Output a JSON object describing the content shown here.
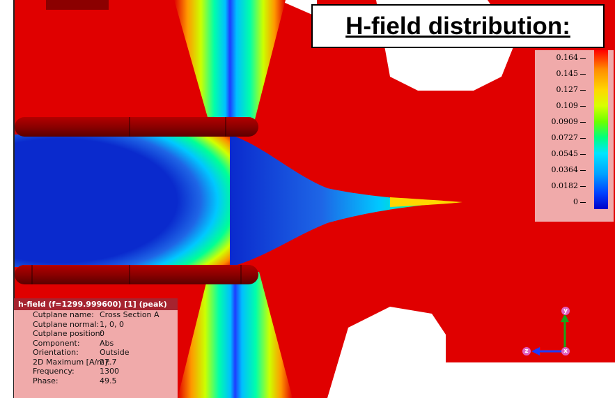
{
  "title": "H-field distribution:",
  "colors": {
    "background_field": "#e00000",
    "low_field": "#0033cc",
    "conductor": "#8b0000",
    "panel_bg": "#f0aaaa",
    "panel_header": "#a6232f"
  },
  "legend": {
    "ticks": [
      "0.164",
      "0.145",
      "0.127",
      "0.109",
      "0.0909",
      "0.0727",
      "0.0545",
      "0.0364",
      "0.0182",
      "0"
    ]
  },
  "info_panel": {
    "header": "h-field (f=1299.999600) [1] (peak)",
    "rows": [
      {
        "key": "Cutplane name:",
        "value": "Cross Section A"
      },
      {
        "key": "Cutplane normal:",
        "value": "1, 0, 0"
      },
      {
        "key": "Cutplane position:",
        "value": "0"
      },
      {
        "key": "Component:",
        "value": "Abs"
      },
      {
        "key": "Orientation:",
        "value": "Outside"
      },
      {
        "key": "2D Maximum [A/m]:",
        "value": "27.7"
      },
      {
        "key": "Frequency:",
        "value": "1300"
      },
      {
        "key": "Phase:",
        "value": "49.5"
      }
    ]
  },
  "axes": {
    "x_label": "x",
    "y_label": "y",
    "z_label": "z"
  }
}
